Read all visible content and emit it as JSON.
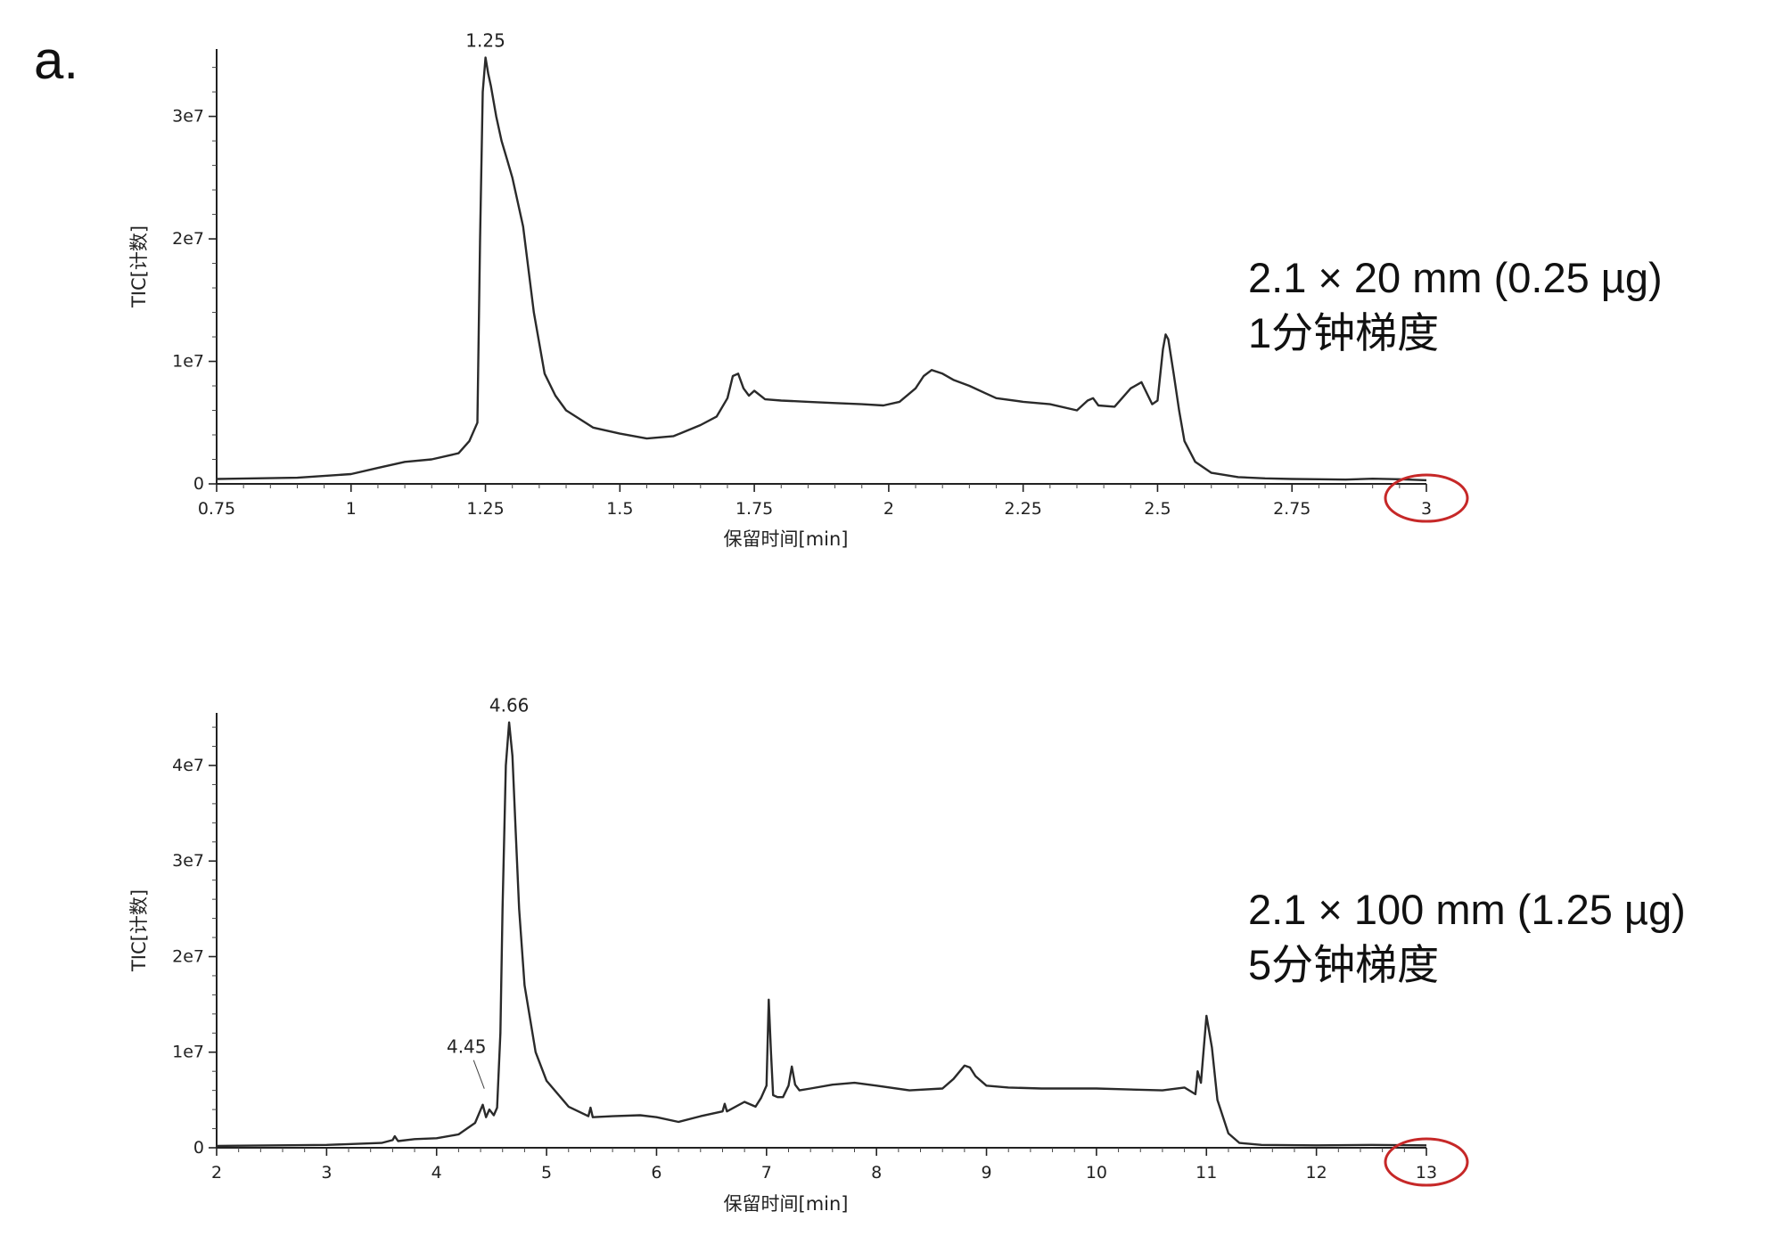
{
  "panel_label": "a.",
  "annotations": [
    {
      "line1": "2.1 × 20 mm (0.25 µg)",
      "line2": "1分钟梯度"
    },
    {
      "line1": "2.1 × 100 mm (1.25 µg)",
      "line2": "5分钟梯度"
    }
  ],
  "chart_data": [
    {
      "type": "line",
      "xlabel": "保留时间[min]",
      "ylabel": "TIC[计数]",
      "xlim": [
        0.75,
        3.0
      ],
      "ylim": [
        0,
        35000000
      ],
      "x_ticks": [
        0.75,
        1,
        1.25,
        1.5,
        1.75,
        2,
        2.25,
        2.5,
        2.75,
        3
      ],
      "x_tick_labels": [
        "0.75",
        "1",
        "1.25",
        "1.5",
        "1.75",
        "2",
        "2.25",
        "2.5",
        "2.75",
        "3"
      ],
      "y_ticks": [
        0,
        10000000,
        20000000,
        30000000
      ],
      "y_tick_labels": [
        "0",
        "1e7",
        "2e7",
        "3e7"
      ],
      "grid": false,
      "highlight_circle_x": 3,
      "peak_labels": [
        {
          "x": 1.25,
          "y": 34800000,
          "text": "1.25"
        }
      ],
      "series": [
        {
          "x": [
            0.75,
            0.9,
            1.0,
            1.05,
            1.1,
            1.15,
            1.2,
            1.22,
            1.235,
            1.24,
            1.245,
            1.25,
            1.255,
            1.26,
            1.27,
            1.28,
            1.29,
            1.3,
            1.32,
            1.34,
            1.36,
            1.38,
            1.4,
            1.45,
            1.5,
            1.55,
            1.6,
            1.65,
            1.68,
            1.7,
            1.71,
            1.72,
            1.73,
            1.74,
            1.75,
            1.77,
            1.8,
            1.85,
            1.9,
            1.95,
            1.99,
            2.02,
            2.05,
            2.065,
            2.08,
            2.1,
            2.12,
            2.15,
            2.18,
            2.2,
            2.25,
            2.3,
            2.35,
            2.37,
            2.38,
            2.39,
            2.42,
            2.45,
            2.47,
            2.49,
            2.5,
            2.51,
            2.515,
            2.52,
            2.53,
            2.54,
            2.55,
            2.57,
            2.6,
            2.65,
            2.7,
            2.75,
            2.8,
            2.85,
            2.9,
            2.95,
            3.0
          ],
          "y": [
            400000,
            500000,
            800000,
            1300000,
            1800000,
            2000000,
            2500000,
            3500000,
            5000000,
            20000000,
            32000000,
            34800000,
            33500000,
            32500000,
            30000000,
            28000000,
            26500000,
            25000000,
            21000000,
            14000000,
            9000000,
            7200000,
            6000000,
            4600000,
            4100000,
            3700000,
            3900000,
            4800000,
            5500000,
            7000000,
            8800000,
            9000000,
            7800000,
            7200000,
            7600000,
            6900000,
            6800000,
            6700000,
            6600000,
            6500000,
            6400000,
            6700000,
            7800000,
            8800000,
            9300000,
            9000000,
            8500000,
            8000000,
            7400000,
            7000000,
            6700000,
            6500000,
            6000000,
            6800000,
            7000000,
            6400000,
            6300000,
            7800000,
            8300000,
            6500000,
            6800000,
            11000000,
            12200000,
            11800000,
            9000000,
            6000000,
            3500000,
            1800000,
            900000,
            550000,
            450000,
            400000,
            380000,
            350000,
            420000,
            380000,
            300000
          ]
        }
      ]
    },
    {
      "type": "line",
      "xlabel": "保留时间[min]",
      "ylabel": "TIC[计数]",
      "xlim": [
        2,
        13
      ],
      "ylim": [
        0,
        45000000
      ],
      "x_ticks": [
        2,
        3,
        4,
        5,
        6,
        7,
        8,
        9,
        10,
        11,
        12,
        13
      ],
      "x_tick_labels": [
        "2",
        "3",
        "4",
        "5",
        "6",
        "7",
        "8",
        "9",
        "10",
        "11",
        "12",
        "13"
      ],
      "y_ticks": [
        0,
        10000000,
        20000000,
        30000000,
        40000000
      ],
      "y_tick_labels": [
        "0",
        "1e7",
        "2e7",
        "3e7",
        "4e7"
      ],
      "grid": false,
      "highlight_circle_x": 13,
      "peak_labels": [
        {
          "x": 4.66,
          "y": 44500000,
          "text": "4.66"
        },
        {
          "x": 4.45,
          "y": 4500000,
          "text": "4.45"
        }
      ],
      "series": [
        {
          "x": [
            2,
            3,
            3.5,
            3.6,
            3.62,
            3.65,
            3.8,
            4.0,
            4.2,
            4.35,
            4.42,
            4.45,
            4.48,
            4.52,
            4.55,
            4.58,
            4.6,
            4.63,
            4.66,
            4.69,
            4.72,
            4.75,
            4.8,
            4.9,
            5.0,
            5.2,
            5.38,
            5.4,
            5.42,
            5.6,
            5.85,
            6.0,
            6.2,
            6.4,
            6.6,
            6.62,
            6.64,
            6.8,
            6.9,
            6.95,
            7.0,
            7.02,
            7.04,
            7.06,
            7.1,
            7.15,
            7.2,
            7.23,
            7.26,
            7.3,
            7.4,
            7.6,
            7.8,
            8.0,
            8.3,
            8.6,
            8.7,
            8.8,
            8.85,
            8.9,
            9.0,
            9.2,
            9.5,
            10.0,
            10.3,
            10.6,
            10.8,
            10.9,
            10.92,
            10.95,
            10.98,
            11.0,
            11.05,
            11.1,
            11.2,
            11.3,
            11.5,
            12.0,
            12.5,
            13.0
          ],
          "y": [
            200000,
            300000,
            500000,
            800000,
            1200000,
            700000,
            900000,
            1000000,
            1400000,
            2600000,
            4500000,
            3200000,
            4000000,
            3400000,
            4200000,
            12000000,
            25000000,
            40000000,
            44500000,
            41000000,
            33000000,
            25000000,
            17000000,
            10000000,
            7000000,
            4300000,
            3300000,
            4200000,
            3200000,
            3300000,
            3400000,
            3200000,
            2700000,
            3300000,
            3800000,
            4600000,
            3800000,
            4800000,
            4300000,
            5200000,
            6500000,
            15500000,
            10000000,
            5500000,
            5300000,
            5300000,
            6500000,
            8500000,
            6600000,
            6000000,
            6200000,
            6600000,
            6800000,
            6500000,
            6000000,
            6200000,
            7200000,
            8600000,
            8400000,
            7500000,
            6500000,
            6300000,
            6200000,
            6200000,
            6100000,
            6000000,
            6300000,
            5600000,
            8000000,
            6800000,
            11000000,
            13800000,
            10500000,
            5000000,
            1500000,
            500000,
            300000,
            250000,
            300000,
            250000
          ]
        }
      ]
    }
  ]
}
